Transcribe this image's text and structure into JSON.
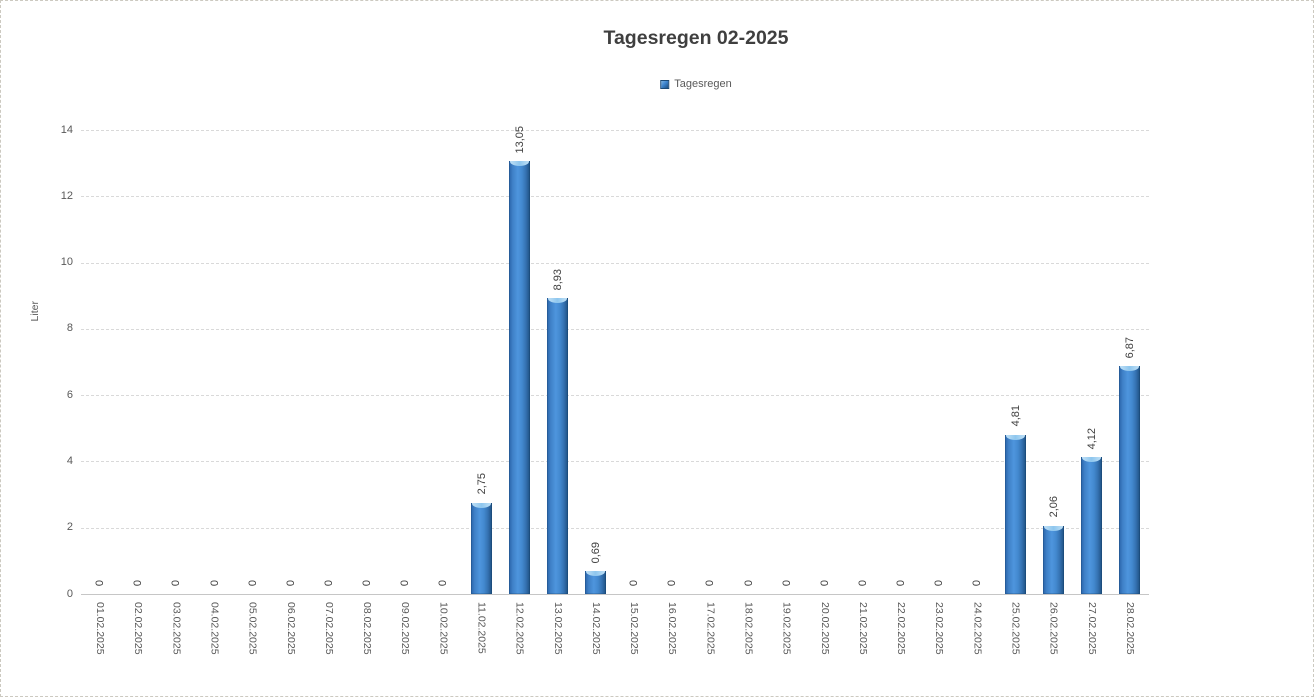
{
  "title": "Tagesregen 02-2025",
  "legend": {
    "label": "Tagesregen"
  },
  "y_axis": {
    "label": "Liter"
  },
  "chart_data": {
    "type": "bar",
    "title": "Tagesregen 02-2025",
    "xlabel": "",
    "ylabel": "Liter",
    "ylim": [
      0,
      14
    ],
    "y_tick_step": 2,
    "y_tick_labels": [
      "0",
      "2",
      "4",
      "6",
      "8",
      "10",
      "12",
      "14"
    ],
    "grid": true,
    "legend_entries": [
      "Tagesregen"
    ],
    "legend_position": "top-center",
    "categories": [
      "01.02.2025",
      "02.02.2025",
      "03.02.2025",
      "04.02.2025",
      "05.02.2025",
      "06.02.2025",
      "07.02.2025",
      "08.02.2025",
      "09.02.2025",
      "10.02.2025",
      "11.02.2025",
      "12.02.2025",
      "13.02.2025",
      "14.02.2025",
      "15.02.2025",
      "16.02.2025",
      "17.02.2025",
      "18.02.2025",
      "19.02.2025",
      "20.02.2025",
      "21.02.2025",
      "22.02.2025",
      "23.02.2025",
      "24.02.2025",
      "25.02.2025",
      "26.02.2025",
      "27.02.2025",
      "28.02.2025"
    ],
    "values": [
      0,
      0,
      0,
      0,
      0,
      0,
      0,
      0,
      0,
      0,
      2.75,
      13.05,
      8.93,
      0.69,
      0,
      0,
      0,
      0,
      0,
      0,
      0,
      0,
      0,
      0,
      4.81,
      2.06,
      4.12,
      6.87
    ],
    "value_labels": [
      "0",
      "0",
      "0",
      "0",
      "0",
      "0",
      "0",
      "0",
      "0",
      "0",
      "2,75",
      "13,05",
      "8,93",
      "0,69",
      "0",
      "0",
      "0",
      "0",
      "0",
      "0",
      "0",
      "0",
      "0",
      "0",
      "4,81",
      "2,06",
      "4,12",
      "6,87"
    ],
    "series_name": "Tagesregen",
    "colors": {
      "bar_main": "#3d85cf",
      "bar_edge_dark": "#1d4f80",
      "bar_highlight": "#4e95dd",
      "bar_cap": "#8ec6ee",
      "gridline": "#d9d9d9",
      "axis_text": "#595959",
      "label_text": "#404040",
      "title_text": "#3f3f3f"
    }
  }
}
